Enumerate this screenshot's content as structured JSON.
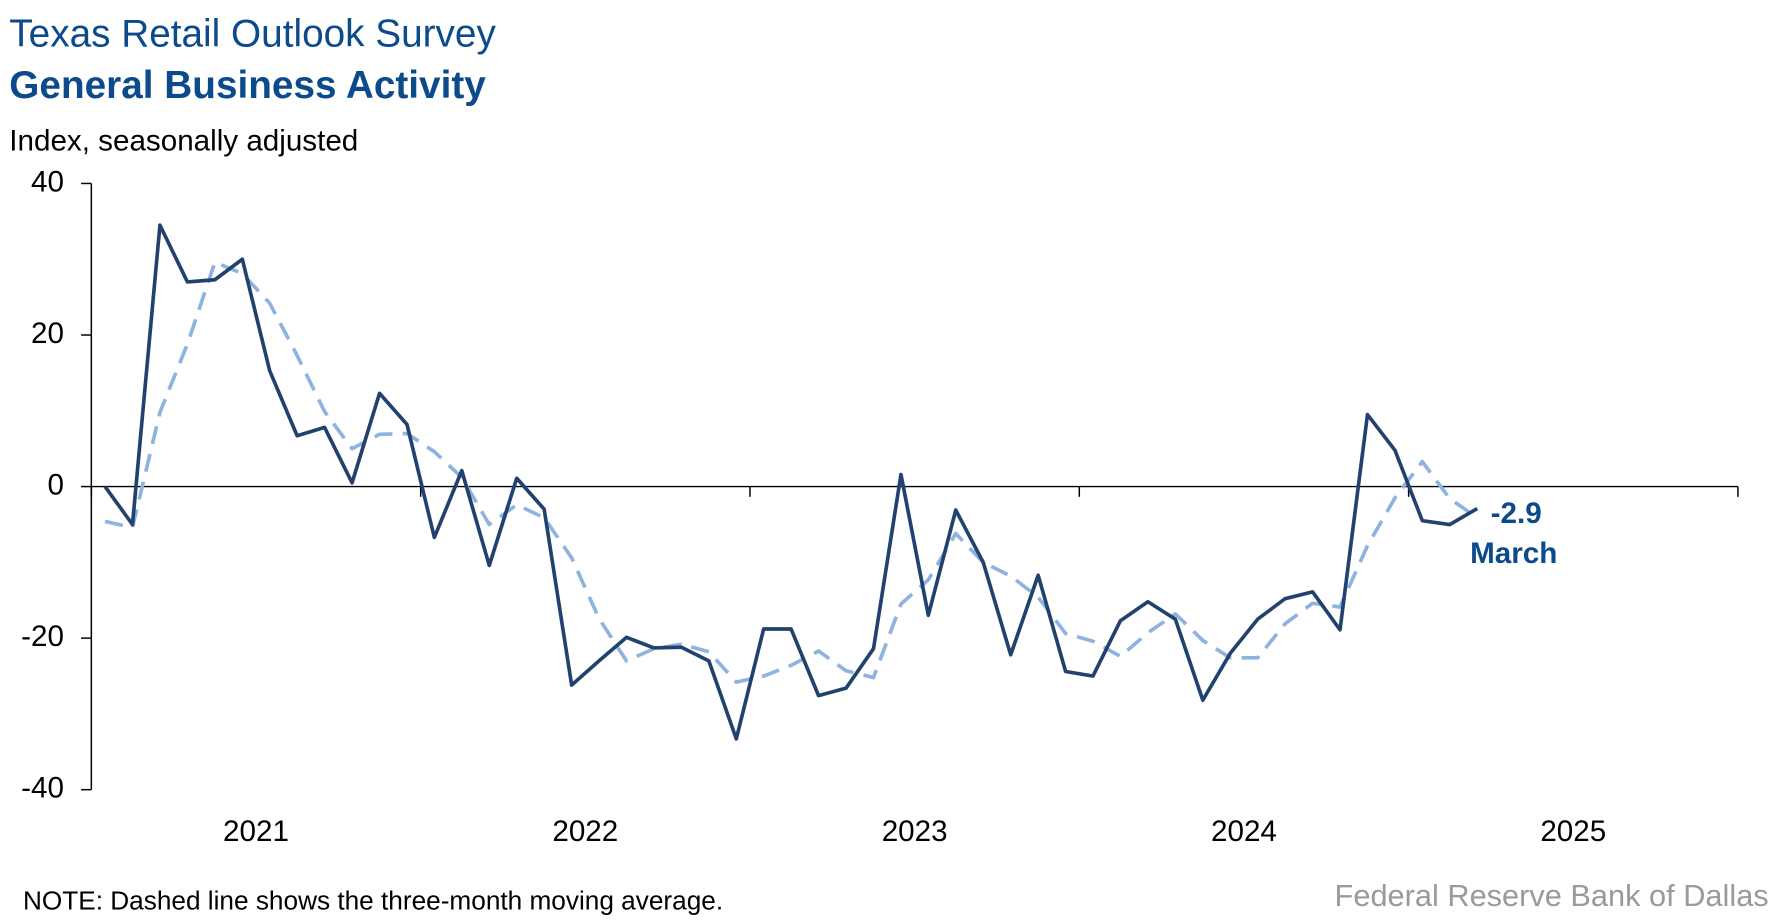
{
  "chart_data": {
    "type": "line",
    "title": "Texas Retail Outlook Survey",
    "subtitle": "General Business Activity",
    "y_label": "Index, seasonally adjusted",
    "note": "NOTE: Dashed line shows the three-month moving average.",
    "source": "Federal Reserve Bank of Dallas",
    "annotation": "March",
    "x_labels": [
      "2021",
      "2022",
      "2023",
      "2024",
      "2025"
    ],
    "xlim": [
      2021,
      2026
    ],
    "xticks": [
      2021,
      2022,
      2023,
      2024,
      2025,
      2026
    ],
    "ylim": [
      -40,
      40
    ],
    "yticks": [
      -40,
      -20,
      0,
      20,
      40
    ],
    "series": [
      {
        "name": "General Business Activity",
        "color": "#21426e",
        "dash": false,
        "values": [
          0,
          -5,
          34.5,
          27,
          27.3,
          30,
          15.3,
          6.7,
          7.8,
          0.5,
          12.3,
          8.2,
          -6.7,
          2.1,
          -10.4,
          1.1,
          -3,
          -26.2,
          -23,
          -19.9,
          -21.3,
          -21.2,
          -23,
          -33.3,
          -18.8,
          -18.8,
          -27.6,
          -26.6,
          -21.4,
          1.6,
          -17,
          -3.1,
          -10,
          -22.2,
          -11.7,
          -24.4,
          -25,
          -17.7,
          -15.2,
          -17.5,
          -28.2,
          -22,
          -17.5,
          -14.8,
          -13.9,
          -18.9,
          9.5,
          4.8,
          -4.5,
          -5,
          -2.9
        ]
      },
      {
        "name": "Three-month moving average",
        "color": "#8fb3e0",
        "dash": true,
        "values": [
          -4.6,
          -5.4,
          9.8,
          18.8,
          29.6,
          28.1,
          24.2,
          17.3,
          9.9,
          5,
          6.9,
          7,
          4.6,
          1.2,
          -5,
          -2.4,
          -4.1,
          -9.4,
          -17.4,
          -23,
          -21.4,
          -20.8,
          -21.8,
          -25.8,
          -25,
          -23.6,
          -21.7,
          -24.3,
          -25.2,
          -15.5,
          -12.3,
          -6.2,
          -10,
          -11.8,
          -14.6,
          -19.4,
          -20.4,
          -22.4,
          -19.3,
          -16.8,
          -20.3,
          -22.6,
          -22.6,
          -18.1,
          -15.4,
          -15.9,
          -7.8,
          -1.5,
          3.3,
          -1.6,
          -4.1
        ]
      }
    ]
  }
}
